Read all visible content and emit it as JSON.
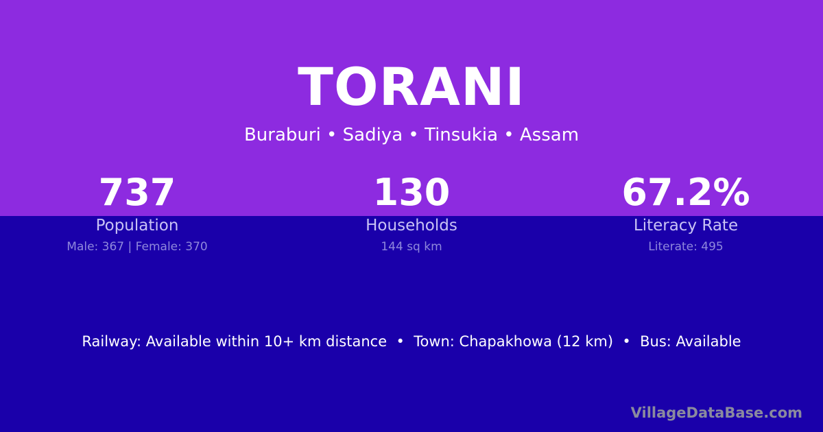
{
  "title": "TORANI",
  "location": "Buraburi • Sadiya • Tinsukia • Assam",
  "stats": [
    {
      "value": "737",
      "label": "Population",
      "detail": "Male: 367 | Female: 370"
    },
    {
      "value": "130",
      "label": "Households",
      "detail": "144 sq km"
    },
    {
      "value": "67.2%",
      "label": "Literacy Rate",
      "detail": "Literate: 495"
    }
  ],
  "info": "Railway: Available within 10+ km distance  •  Town: Chapakhowa (12 km)  •  Bus: Available",
  "brand": "VillageDataBase.com",
  "colors": {
    "top": "#8d2be0",
    "bottom": "#1a00aa"
  }
}
